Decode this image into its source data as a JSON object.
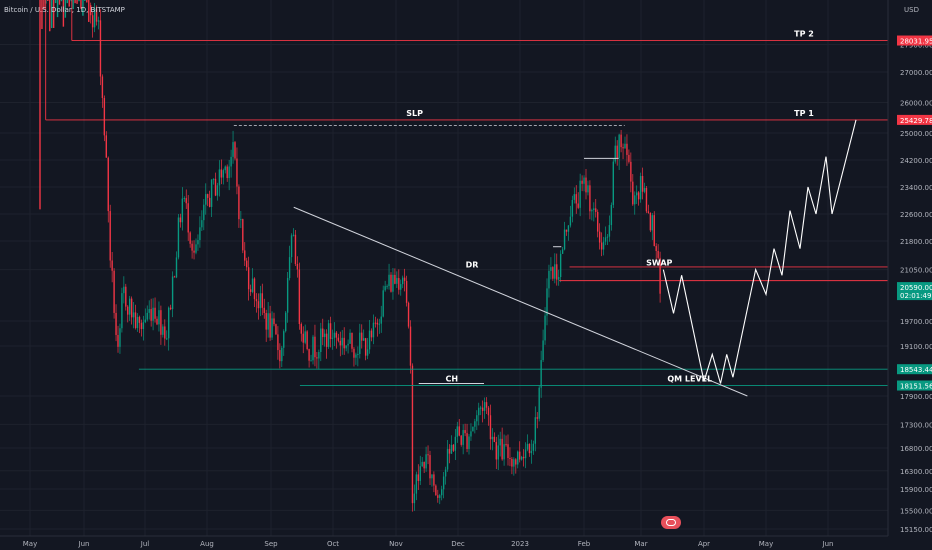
{
  "symbol_title": "Bitcoin / U.S. Dollar, 1D, BITSTAMP",
  "currency": "USD",
  "chart_data": {
    "type": "candlestick",
    "instrument": "Bitcoin / U.S. Dollar",
    "exchange": "BITSTAMP",
    "currency": "USD",
    "ylim": [
      15150,
      29800
    ],
    "y_ticks": [
      27900,
      27000,
      26000,
      25000,
      24200,
      23400,
      22600,
      21800,
      21050,
      19700,
      19100,
      17900,
      17300,
      16800,
      16300,
      15900,
      15500,
      15150
    ],
    "x_ticks": [
      "May",
      "Jun",
      "Jul",
      "Aug",
      "Sep",
      "Oct",
      "Nov",
      "Dec",
      "2023",
      "Feb",
      "Mar",
      "Apr",
      "May",
      "Jun"
    ],
    "price_labels": [
      {
        "value": 28031.95,
        "text": "28031.95",
        "color": "#f23645"
      },
      {
        "value": 25429.78,
        "text": "25429.78",
        "color": "#f23645"
      },
      {
        "value": 20590.0,
        "text": "20590.00",
        "countdown": "02:01:49",
        "color": "#089981"
      },
      {
        "value": 18543.44,
        "text": "18543.44",
        "color": "#089981"
      },
      {
        "value": 18151.56,
        "text": "18151.56",
        "color": "#089981"
      }
    ],
    "annotations": [
      {
        "text": "TP 2",
        "x": "2023-05-20",
        "y": 28031.95
      },
      {
        "text": "TP 1",
        "x": "2023-05-20",
        "y": 25429.78
      },
      {
        "text": "SLP",
        "x": "2022-11-10",
        "y": 25429.78
      },
      {
        "text": "DR",
        "x": "2022-12-08",
        "y": 21000
      },
      {
        "text": "SWAP",
        "x": "2023-03-10",
        "y": 21050
      },
      {
        "text": "CH",
        "x": "2022-11-28",
        "y": 18151.56
      },
      {
        "text": "QM LEVEL",
        "x": "2023-03-25",
        "y": 18151.56
      }
    ],
    "levels": [
      {
        "name": "TP 2",
        "y": 28031.95,
        "from": "2022-05-25",
        "color": "#f23645"
      },
      {
        "name": "TP 1",
        "y": 25429.78,
        "from": "2022-05-10",
        "color": "#f23645"
      },
      {
        "name": "SWAP upper",
        "y": 21120,
        "from": "2023-01-25",
        "color": "#f23645"
      },
      {
        "name": "SWAP lower",
        "y": 20760,
        "from": "2023-01-20",
        "color": "#f23645"
      },
      {
        "name": "QM upper",
        "y": 18543.44,
        "from": "2022-06-28",
        "color": "#089981"
      },
      {
        "name": "QM lower",
        "y": 18151.56,
        "from": "2022-09-15",
        "color": "#089981"
      }
    ],
    "candles_close": [
      {
        "x": "2022-05-01",
        "y": 38500
      },
      {
        "x": "2022-05-08",
        "y": 30000
      },
      {
        "x": "2022-05-15",
        "y": 29900
      },
      {
        "x": "2022-05-22",
        "y": 29500
      },
      {
        "x": "2022-06-01",
        "y": 29700
      },
      {
        "x": "2022-06-08",
        "y": 28500
      },
      {
        "x": "2022-06-12",
        "y": 24000
      },
      {
        "x": "2022-06-14",
        "y": 21300
      },
      {
        "x": "2022-06-18",
        "y": 18600
      },
      {
        "x": "2022-06-20",
        "y": 20500
      },
      {
        "x": "2022-06-28",
        "y": 19500
      },
      {
        "x": "2022-07-05",
        "y": 20100
      },
      {
        "x": "2022-07-12",
        "y": 19400
      },
      {
        "x": "2022-07-20",
        "y": 23200
      },
      {
        "x": "2022-07-26",
        "y": 21300
      },
      {
        "x": "2022-08-01",
        "y": 23000
      },
      {
        "x": "2022-08-08",
        "y": 23800
      },
      {
        "x": "2022-08-14",
        "y": 24400
      },
      {
        "x": "2022-08-19",
        "y": 21200
      },
      {
        "x": "2022-08-26",
        "y": 20200
      },
      {
        "x": "2022-09-06",
        "y": 18900
      },
      {
        "x": "2022-09-12",
        "y": 22200
      },
      {
        "x": "2022-09-15",
        "y": 19700
      },
      {
        "x": "2022-09-20",
        "y": 19000
      },
      {
        "x": "2022-09-30",
        "y": 19400
      },
      {
        "x": "2022-10-10",
        "y": 19100
      },
      {
        "x": "2022-10-20",
        "y": 19200
      },
      {
        "x": "2022-10-27",
        "y": 20600
      },
      {
        "x": "2022-11-05",
        "y": 21000
      },
      {
        "x": "2022-11-08",
        "y": 18500
      },
      {
        "x": "2022-11-09",
        "y": 15800
      },
      {
        "x": "2022-11-15",
        "y": 16600
      },
      {
        "x": "2022-11-21",
        "y": 15800
      },
      {
        "x": "2022-11-30",
        "y": 17100
      },
      {
        "x": "2022-12-05",
        "y": 17000
      },
      {
        "x": "2022-12-14",
        "y": 17800
      },
      {
        "x": "2022-12-20",
        "y": 16800
      },
      {
        "x": "2022-12-30",
        "y": 16550
      },
      {
        "x": "2023-01-08",
        "y": 17100
      },
      {
        "x": "2023-01-12",
        "y": 18800
      },
      {
        "x": "2023-01-14",
        "y": 20900
      },
      {
        "x": "2023-01-20",
        "y": 21100
      },
      {
        "x": "2023-01-25",
        "y": 22700
      },
      {
        "x": "2023-02-02",
        "y": 23500
      },
      {
        "x": "2023-02-09",
        "y": 21800
      },
      {
        "x": "2023-02-13",
        "y": 21700
      },
      {
        "x": "2023-02-16",
        "y": 24300
      },
      {
        "x": "2023-02-21",
        "y": 24800
      },
      {
        "x": "2023-02-25",
        "y": 23200
      },
      {
        "x": "2023-03-02",
        "y": 23400
      },
      {
        "x": "2023-03-06",
        "y": 22400
      },
      {
        "x": "2023-03-09",
        "y": 21700
      },
      {
        "x": "2023-03-10",
        "y": 20100
      },
      {
        "x": "2023-03-11",
        "y": 20590
      }
    ]
  }
}
